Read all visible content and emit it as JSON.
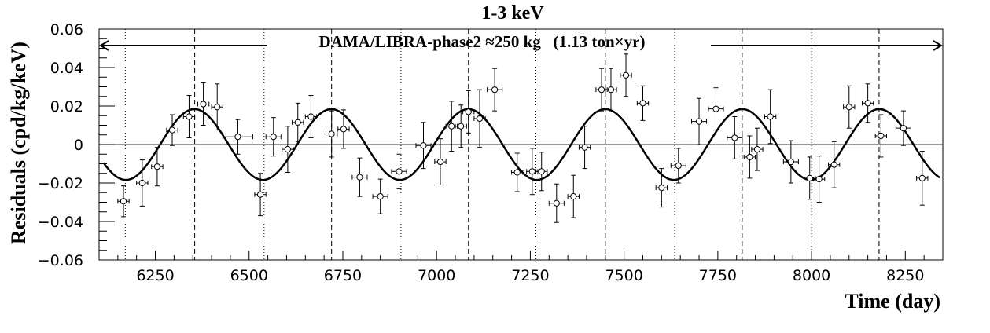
{
  "chart_data": {
    "type": "scatter",
    "title": "1-3 keV",
    "xlabel": "Time (day)",
    "ylabel": "Residuals (cpd/kg/keV)",
    "annotation": "DAMA/LIBRA-phase2 ≈250 kg   (1.13 ton×yr)",
    "xlim": [
      6100,
      8350
    ],
    "ylim": [
      -0.06,
      0.06
    ],
    "xticks": [
      6250,
      6500,
      6750,
      7000,
      7250,
      7500,
      7750,
      8000,
      8250
    ],
    "yticks": [
      -0.06,
      -0.04,
      -0.02,
      0,
      0.02,
      0.04,
      0.06
    ],
    "ytick_labels": [
      "−0.06",
      "−0.04",
      "−0.02",
      "0",
      "0.02",
      "0.04",
      "0.06"
    ],
    "grid": false,
    "dotted_vlines": [
      6170,
      6540,
      6905,
      7265,
      7635,
      8000
    ],
    "dashed_vlines": [
      6355,
      6720,
      7085,
      7450,
      7815,
      8180
    ],
    "fit": {
      "amplitude": 0.0184,
      "period": 365.25,
      "phase": 152.5,
      "t_offset": 7450,
      "x_start": 6112,
      "x_end": 8342,
      "color": "#000000"
    },
    "series": [
      {
        "points": [
          {
            "x": 6165,
            "y": -0.0295,
            "xerr": 15,
            "yerr": 0.008
          },
          {
            "x": 6215,
            "y": -0.02,
            "xerr": 15,
            "yerr": 0.012
          },
          {
            "x": 6255,
            "y": -0.0115,
            "xerr": 15,
            "yerr": 0.01
          },
          {
            "x": 6295,
            "y": 0.0075,
            "xerr": 15,
            "yerr": 0.008
          },
          {
            "x": 6340,
            "y": 0.0145,
            "xerr": 15,
            "yerr": 0.011
          },
          {
            "x": 6378,
            "y": 0.021,
            "xerr": 15,
            "yerr": 0.011
          },
          {
            "x": 6415,
            "y": 0.0195,
            "xerr": 15,
            "yerr": 0.012
          },
          {
            "x": 6470,
            "y": 0.004,
            "xerr": 40,
            "yerr": 0.009
          },
          {
            "x": 6530,
            "y": -0.026,
            "xerr": 15,
            "yerr": 0.011
          },
          {
            "x": 6565,
            "y": 0.004,
            "xerr": 20,
            "yerr": 0.01
          },
          {
            "x": 6603,
            "y": -0.0025,
            "xerr": 15,
            "yerr": 0.012
          },
          {
            "x": 6630,
            "y": 0.0115,
            "xerr": 15,
            "yerr": 0.01
          },
          {
            "x": 6665,
            "y": 0.0145,
            "xerr": 15,
            "yerr": 0.011
          },
          {
            "x": 6720,
            "y": 0.0055,
            "xerr": 15,
            "yerr": 0.012
          },
          {
            "x": 6752,
            "y": 0.008,
            "xerr": 15,
            "yerr": 0.01
          },
          {
            "x": 6795,
            "y": -0.017,
            "xerr": 20,
            "yerr": 0.01
          },
          {
            "x": 6850,
            "y": -0.027,
            "xerr": 20,
            "yerr": 0.009
          },
          {
            "x": 6900,
            "y": -0.014,
            "xerr": 20,
            "yerr": 0.009
          },
          {
            "x": 6965,
            "y": -0.0005,
            "xerr": 20,
            "yerr": 0.012
          },
          {
            "x": 7010,
            "y": -0.009,
            "xerr": 15,
            "yerr": 0.012
          },
          {
            "x": 7040,
            "y": 0.0095,
            "xerr": 15,
            "yerr": 0.013
          },
          {
            "x": 7065,
            "y": 0.0095,
            "xerr": 15,
            "yerr": 0.011
          },
          {
            "x": 7085,
            "y": 0.017,
            "xerr": 15,
            "yerr": 0.011
          },
          {
            "x": 7115,
            "y": 0.0135,
            "xerr": 15,
            "yerr": 0.015
          },
          {
            "x": 7155,
            "y": 0.0285,
            "xerr": 20,
            "yerr": 0.011
          },
          {
            "x": 7215,
            "y": -0.0145,
            "xerr": 15,
            "yerr": 0.01
          },
          {
            "x": 7255,
            "y": -0.014,
            "xerr": 15,
            "yerr": 0.012
          },
          {
            "x": 7280,
            "y": -0.014,
            "xerr": 15,
            "yerr": 0.01
          },
          {
            "x": 7320,
            "y": -0.0305,
            "xerr": 20,
            "yerr": 0.01
          },
          {
            "x": 7365,
            "y": -0.027,
            "xerr": 15,
            "yerr": 0.011
          },
          {
            "x": 7395,
            "y": -0.0015,
            "xerr": 15,
            "yerr": 0.011
          },
          {
            "x": 7440,
            "y": 0.0285,
            "xerr": 15,
            "yerr": 0.011
          },
          {
            "x": 7465,
            "y": 0.0285,
            "xerr": 15,
            "yerr": 0.011
          },
          {
            "x": 7505,
            "y": 0.036,
            "xerr": 15,
            "yerr": 0.011
          },
          {
            "x": 7550,
            "y": 0.0215,
            "xerr": 15,
            "yerr": 0.009
          },
          {
            "x": 7600,
            "y": -0.0225,
            "xerr": 15,
            "yerr": 0.01
          },
          {
            "x": 7645,
            "y": -0.011,
            "xerr": 20,
            "yerr": 0.009
          },
          {
            "x": 7700,
            "y": 0.012,
            "xerr": 20,
            "yerr": 0.012
          },
          {
            "x": 7745,
            "y": 0.0185,
            "xerr": 20,
            "yerr": 0.011
          },
          {
            "x": 7795,
            "y": 0.0035,
            "xerr": 20,
            "yerr": 0.011
          },
          {
            "x": 7835,
            "y": -0.0065,
            "xerr": 15,
            "yerr": 0.011
          },
          {
            "x": 7855,
            "y": -0.0025,
            "xerr": 15,
            "yerr": 0.011
          },
          {
            "x": 7890,
            "y": 0.0145,
            "xerr": 15,
            "yerr": 0.014
          },
          {
            "x": 7945,
            "y": -0.009,
            "xerr": 20,
            "yerr": 0.011
          },
          {
            "x": 7995,
            "y": -0.0175,
            "xerr": 15,
            "yerr": 0.011
          },
          {
            "x": 8020,
            "y": -0.018,
            "xerr": 15,
            "yerr": 0.012
          },
          {
            "x": 8060,
            "y": -0.0105,
            "xerr": 15,
            "yerr": 0.012
          },
          {
            "x": 8100,
            "y": 0.0195,
            "xerr": 15,
            "yerr": 0.011
          },
          {
            "x": 8150,
            "y": 0.0215,
            "xerr": 15,
            "yerr": 0.01
          },
          {
            "x": 8185,
            "y": 0.0045,
            "xerr": 15,
            "yerr": 0.011
          },
          {
            "x": 8245,
            "y": 0.0085,
            "xerr": 20,
            "yerr": 0.009
          },
          {
            "x": 8295,
            "y": -0.0175,
            "xerr": 15,
            "yerr": 0.014
          }
        ]
      }
    ]
  }
}
